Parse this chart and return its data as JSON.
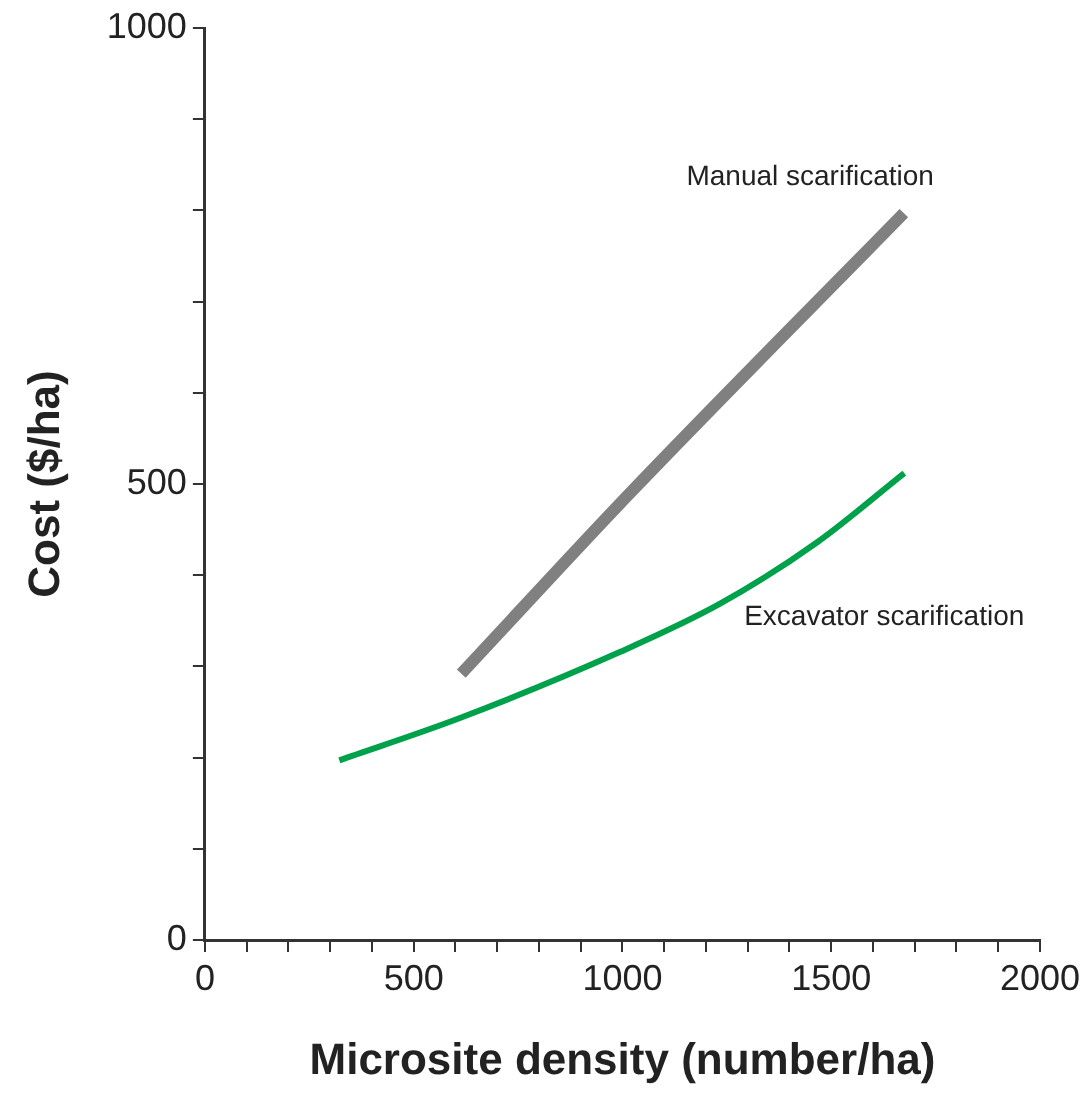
{
  "chart_data": {
    "type": "line",
    "xlabel": "Microsite density (number/ha)",
    "ylabel": "Cost ($/ha)",
    "xlim": [
      0,
      2000
    ],
    "xticks": [
      0,
      {
        "value": 100,
        "label": null
      },
      {
        "value": 200,
        "label": null
      },
      {
        "value": 300,
        "label": null
      },
      {
        "value": 400,
        "label": null
      },
      500,
      {
        "value": 600,
        "label": null
      },
      {
        "value": 700,
        "label": null
      },
      {
        "value": 800,
        "label": null
      },
      {
        "value": 900,
        "label": null
      },
      1000,
      {
        "value": 1100,
        "label": null
      },
      {
        "value": 1200,
        "label": null
      },
      {
        "value": 1300,
        "label": null
      },
      {
        "value": 1400,
        "label": null
      },
      1500,
      {
        "value": 1600,
        "label": null
      },
      {
        "value": 1700,
        "label": null
      },
      {
        "value": 1800,
        "label": null
      },
      {
        "value": 1900,
        "label": null
      },
      2000
    ],
    "ylim": [
      0,
      1000
    ],
    "yticks": [
      0,
      {
        "value": 100,
        "label": null
      },
      {
        "value": 200,
        "label": null
      },
      {
        "value": 300,
        "label": null
      },
      {
        "value": 400,
        "label": null
      },
      500,
      {
        "value": 600,
        "label": null
      },
      {
        "value": 700,
        "label": null
      },
      {
        "value": 800,
        "label": null
      },
      {
        "value": 900,
        "label": null
      },
      1000
    ],
    "grid": false,
    "legend": false,
    "marker": "none",
    "line_style": "solid",
    "series": [
      {
        "name": "Manual scarification",
        "color": "#808080",
        "x": [
          614,
          1018,
          1674
        ],
        "values": [
          292,
          490,
          797
        ]
      },
      {
        "name": "Excavator scarification",
        "color": "#00a14b",
        "x": [
          322,
          614,
          995,
          1235,
          1469,
          1675
        ],
        "values": [
          197,
          244,
          316,
          369,
          437,
          512
        ]
      }
    ]
  }
}
